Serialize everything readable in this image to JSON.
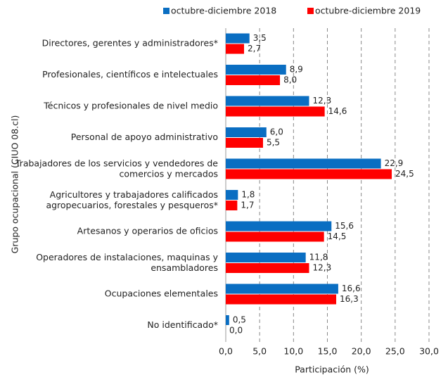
{
  "chart_data": {
    "type": "bar",
    "orientation": "horizontal",
    "categories": [
      "Directores, gerentes y administradores*",
      "Profesionales, científicos e intelectuales",
      "Técnicos y profesionales de nivel medio",
      "Personal de apoyo administrativo",
      "Trabajadores de los servicios y vendedores de\ncomercios y mercados",
      "Agricultores y trabajadores calificados\nagropecuarios, forestales y pesqueros*",
      "Artesanos y operarios de oficios",
      "Operadores de instalaciones, maquinas y\nensambladores",
      "Ocupaciones elementales",
      "No identificado*"
    ],
    "series": [
      {
        "name": "octubre-diciembre 2018",
        "color": "#0a6ec2",
        "values": [
          3.5,
          8.9,
          12.3,
          6.0,
          22.9,
          1.8,
          15.6,
          11.8,
          16.6,
          0.5
        ],
        "value_labels": [
          "3,5",
          "8,9",
          "12,3",
          "6,0",
          "22,9",
          "1,8",
          "15,6",
          "11,8",
          "16,6",
          "0,5"
        ]
      },
      {
        "name": "octubre-diciembre 2019",
        "color": "#ff0000",
        "values": [
          2.7,
          8.0,
          14.6,
          5.5,
          24.5,
          1.7,
          14.5,
          12.3,
          16.3,
          0.0
        ],
        "value_labels": [
          "2,7",
          "8,0",
          "14,6",
          "5,5",
          "24,5",
          "1,7",
          "14,5",
          "12,3",
          "16,3",
          "0,0"
        ]
      }
    ],
    "xlabel": "Participación (%)",
    "ylabel": "Grupo ocupacional (CIUO 08.cl)",
    "xlim": [
      0,
      30
    ],
    "xticks": [
      {
        "value": 0,
        "label": "0,0"
      },
      {
        "value": 5,
        "label": "5,0"
      },
      {
        "value": 10,
        "label": "10,0"
      },
      {
        "value": 15,
        "label": "15,0"
      },
      {
        "value": 20,
        "label": "20,0"
      },
      {
        "value": 25,
        "label": "25,0"
      },
      {
        "value": 30,
        "label": "30,0"
      }
    ],
    "grid": true,
    "legend": "top"
  }
}
